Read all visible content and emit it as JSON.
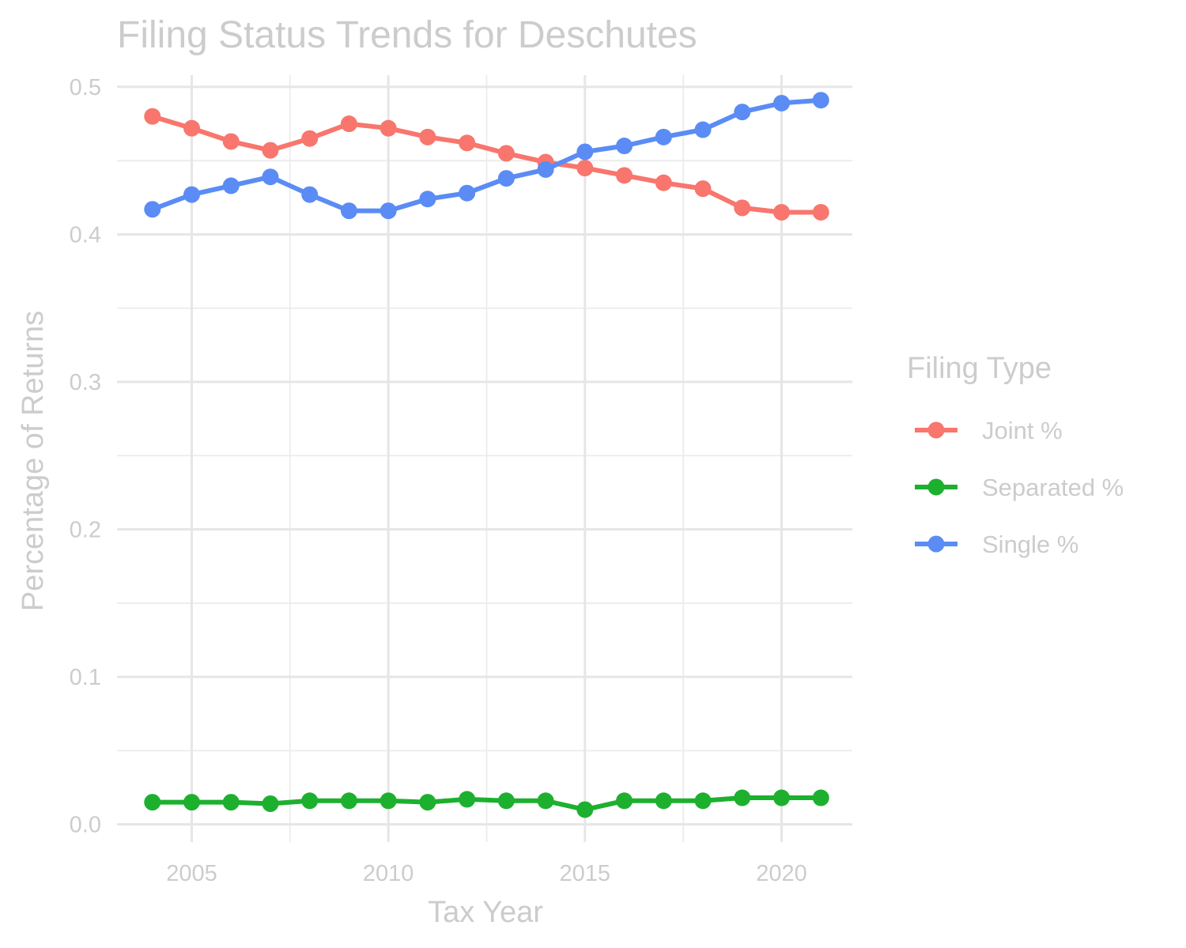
{
  "chart_data": {
    "type": "line",
    "title": "Filing Status Trends for Deschutes",
    "xlabel": "Tax Year",
    "ylabel": "Percentage of Returns",
    "x": [
      2004,
      2005,
      2006,
      2007,
      2008,
      2009,
      2010,
      2011,
      2012,
      2013,
      2014,
      2015,
      2016,
      2017,
      2018,
      2019,
      2020,
      2021
    ],
    "xlim": [
      2003.1,
      2021.8
    ],
    "ylim": [
      -0.012,
      0.508
    ],
    "x_ticks": [
      2005,
      2010,
      2015,
      2020
    ],
    "x_tick_labels": [
      "2005",
      "2010",
      "2015",
      "2020"
    ],
    "y_ticks": [
      0.0,
      0.1,
      0.2,
      0.3,
      0.4,
      0.5
    ],
    "y_tick_labels": [
      "0.0",
      "0.1",
      "0.2",
      "0.3",
      "0.4",
      "0.5"
    ],
    "grid": true,
    "legend": {
      "title": "Filing Type",
      "position": "right"
    },
    "series": [
      {
        "name": "Joint %",
        "color": "#F8766D",
        "values": [
          0.48,
          0.472,
          0.463,
          0.457,
          0.465,
          0.475,
          0.472,
          0.466,
          0.462,
          0.455,
          0.449,
          0.445,
          0.44,
          0.435,
          0.431,
          0.418,
          0.415,
          0.415
        ]
      },
      {
        "name": "Separated %",
        "color": "#1DB02F",
        "values": [
          0.015,
          0.015,
          0.015,
          0.014,
          0.016,
          0.016,
          0.016,
          0.015,
          0.017,
          0.016,
          0.016,
          0.01,
          0.016,
          0.016,
          0.016,
          0.018,
          0.018,
          0.018
        ]
      },
      {
        "name": "Single %",
        "color": "#5B8CF5",
        "values": [
          0.417,
          0.427,
          0.433,
          0.439,
          0.427,
          0.416,
          0.416,
          0.424,
          0.428,
          0.438,
          0.444,
          0.456,
          0.46,
          0.466,
          0.471,
          0.483,
          0.489,
          0.491
        ]
      }
    ]
  }
}
